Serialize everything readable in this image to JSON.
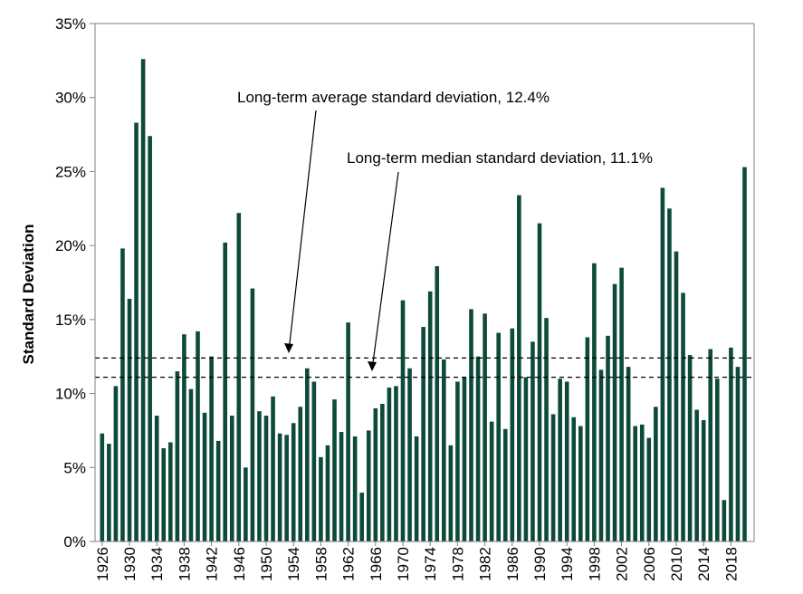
{
  "chart_data": {
    "type": "bar",
    "title": "",
    "xlabel": "",
    "ylabel": "Standard Deviation",
    "ylim": [
      0,
      35
    ],
    "y_ticks": [
      "0%",
      "5%",
      "10%",
      "15%",
      "20%",
      "25%",
      "30%",
      "35%"
    ],
    "y_tick_values": [
      0,
      5,
      10,
      15,
      20,
      25,
      30,
      35
    ],
    "x_tick_labels": [
      "1926",
      "1930",
      "1934",
      "1938",
      "1942",
      "1946",
      "1950",
      "1954",
      "1958",
      "1962",
      "1966",
      "1970",
      "1974",
      "1978",
      "1982",
      "1986",
      "1990",
      "1994",
      "1998",
      "2002",
      "2006",
      "2010",
      "2014",
      "2018"
    ],
    "bar_color": "#0d4a3a",
    "categories": [
      1926,
      1927,
      1928,
      1929,
      1930,
      1931,
      1932,
      1933,
      1934,
      1935,
      1936,
      1937,
      1938,
      1939,
      1940,
      1941,
      1942,
      1943,
      1944,
      1945,
      1946,
      1947,
      1948,
      1949,
      1950,
      1951,
      1952,
      1953,
      1954,
      1955,
      1956,
      1957,
      1958,
      1959,
      1960,
      1961,
      1962,
      1963,
      1964,
      1965,
      1966,
      1967,
      1968,
      1969,
      1970,
      1971,
      1972,
      1973,
      1974,
      1975,
      1976,
      1977,
      1978,
      1979,
      1980,
      1981,
      1982,
      1983,
      1984,
      1985,
      1986,
      1987,
      1988,
      1989,
      1990,
      1991,
      1992,
      1993,
      1994,
      1995,
      1996,
      1997,
      1998,
      1999,
      2000,
      2001,
      2002,
      2003,
      2004,
      2005,
      2006,
      2007,
      2008,
      2009,
      2010,
      2011,
      2012,
      2013,
      2014,
      2015,
      2016,
      2017,
      2018,
      2019,
      2020
    ],
    "values": [
      7.3,
      6.6,
      10.5,
      19.8,
      16.4,
      28.3,
      32.6,
      27.4,
      8.5,
      6.3,
      6.7,
      11.5,
      14.0,
      10.3,
      14.2,
      8.7,
      12.5,
      6.8,
      20.2,
      8.5,
      22.2,
      5.0,
      17.1,
      8.8,
      8.5,
      9.8,
      7.3,
      7.2,
      8.0,
      9.1,
      11.7,
      10.8,
      5.7,
      6.5,
      9.6,
      7.4,
      14.8,
      7.1,
      3.3,
      7.5,
      9.0,
      9.3,
      10.4,
      10.5,
      16.3,
      11.7,
      7.1,
      14.5,
      16.9,
      18.6,
      12.3,
      6.5,
      10.8,
      11.1,
      15.7,
      12.5,
      15.4,
      8.1,
      14.1,
      7.6,
      14.4,
      23.4,
      11.1,
      13.5,
      21.5,
      15.1,
      8.6,
      11.0,
      10.8,
      8.4,
      7.8,
      13.8,
      18.8,
      11.6,
      13.9,
      17.4,
      18.5,
      11.8,
      7.8,
      7.9,
      7.0,
      9.1,
      23.9,
      22.5,
      19.6,
      16.8,
      12.6,
      8.9,
      8.2,
      13.0,
      11.0,
      2.8,
      13.1,
      11.8,
      25.3
    ],
    "reference_lines": [
      {
        "name": "average",
        "value": 12.4,
        "style": "dashed",
        "label": "Long-term average standard deviation, 12.4%"
      },
      {
        "name": "median",
        "value": 11.1,
        "style": "dashed",
        "label": "Long-term median standard deviation, 11.1%"
      }
    ],
    "grid": false,
    "legend": "none"
  }
}
